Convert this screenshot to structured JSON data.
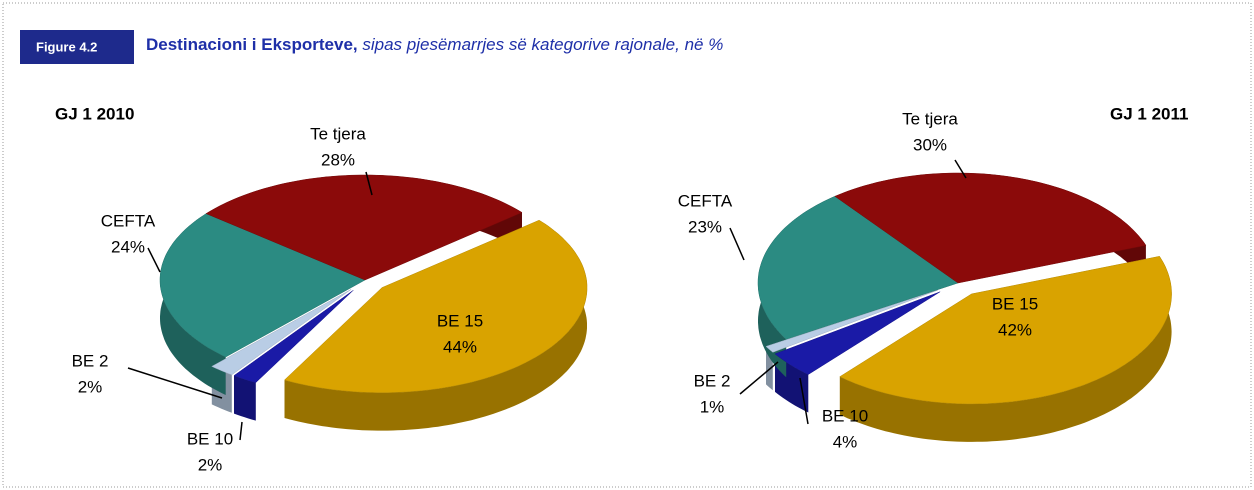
{
  "figure": {
    "label": "Figure 4.2",
    "title": "Destinacioni i Eksporteve,",
    "subtitle": "sipas pjesëmarrjes së kategorive rajonale, në %"
  },
  "chart_data": [
    {
      "type": "pie",
      "title": "GJ 1 2010",
      "categories": [
        "BE 15",
        "BE 10",
        "BE 2",
        "CEFTA",
        "Te tjera"
      ],
      "values": [
        44,
        2,
        2,
        24,
        28
      ],
      "value_labels": [
        "44%",
        "2%",
        "2%",
        "24%",
        "28%"
      ],
      "colors": [
        "#d9a300",
        "#1a1aa6",
        "#b9cde5",
        "#2b8b82",
        "#8b0a0a"
      ]
    },
    {
      "type": "pie",
      "title": "GJ 1 2011",
      "categories": [
        "BE 15",
        "BE 10",
        "BE 2",
        "CEFTA",
        "Te tjera"
      ],
      "values": [
        42,
        4,
        1,
        23,
        30
      ],
      "value_labels": [
        "42%",
        "4%",
        "1%",
        "23%",
        "30%"
      ],
      "colors": [
        "#d9a300",
        "#1a1aa6",
        "#b9cde5",
        "#2b8b82",
        "#8b0a0a"
      ]
    }
  ]
}
